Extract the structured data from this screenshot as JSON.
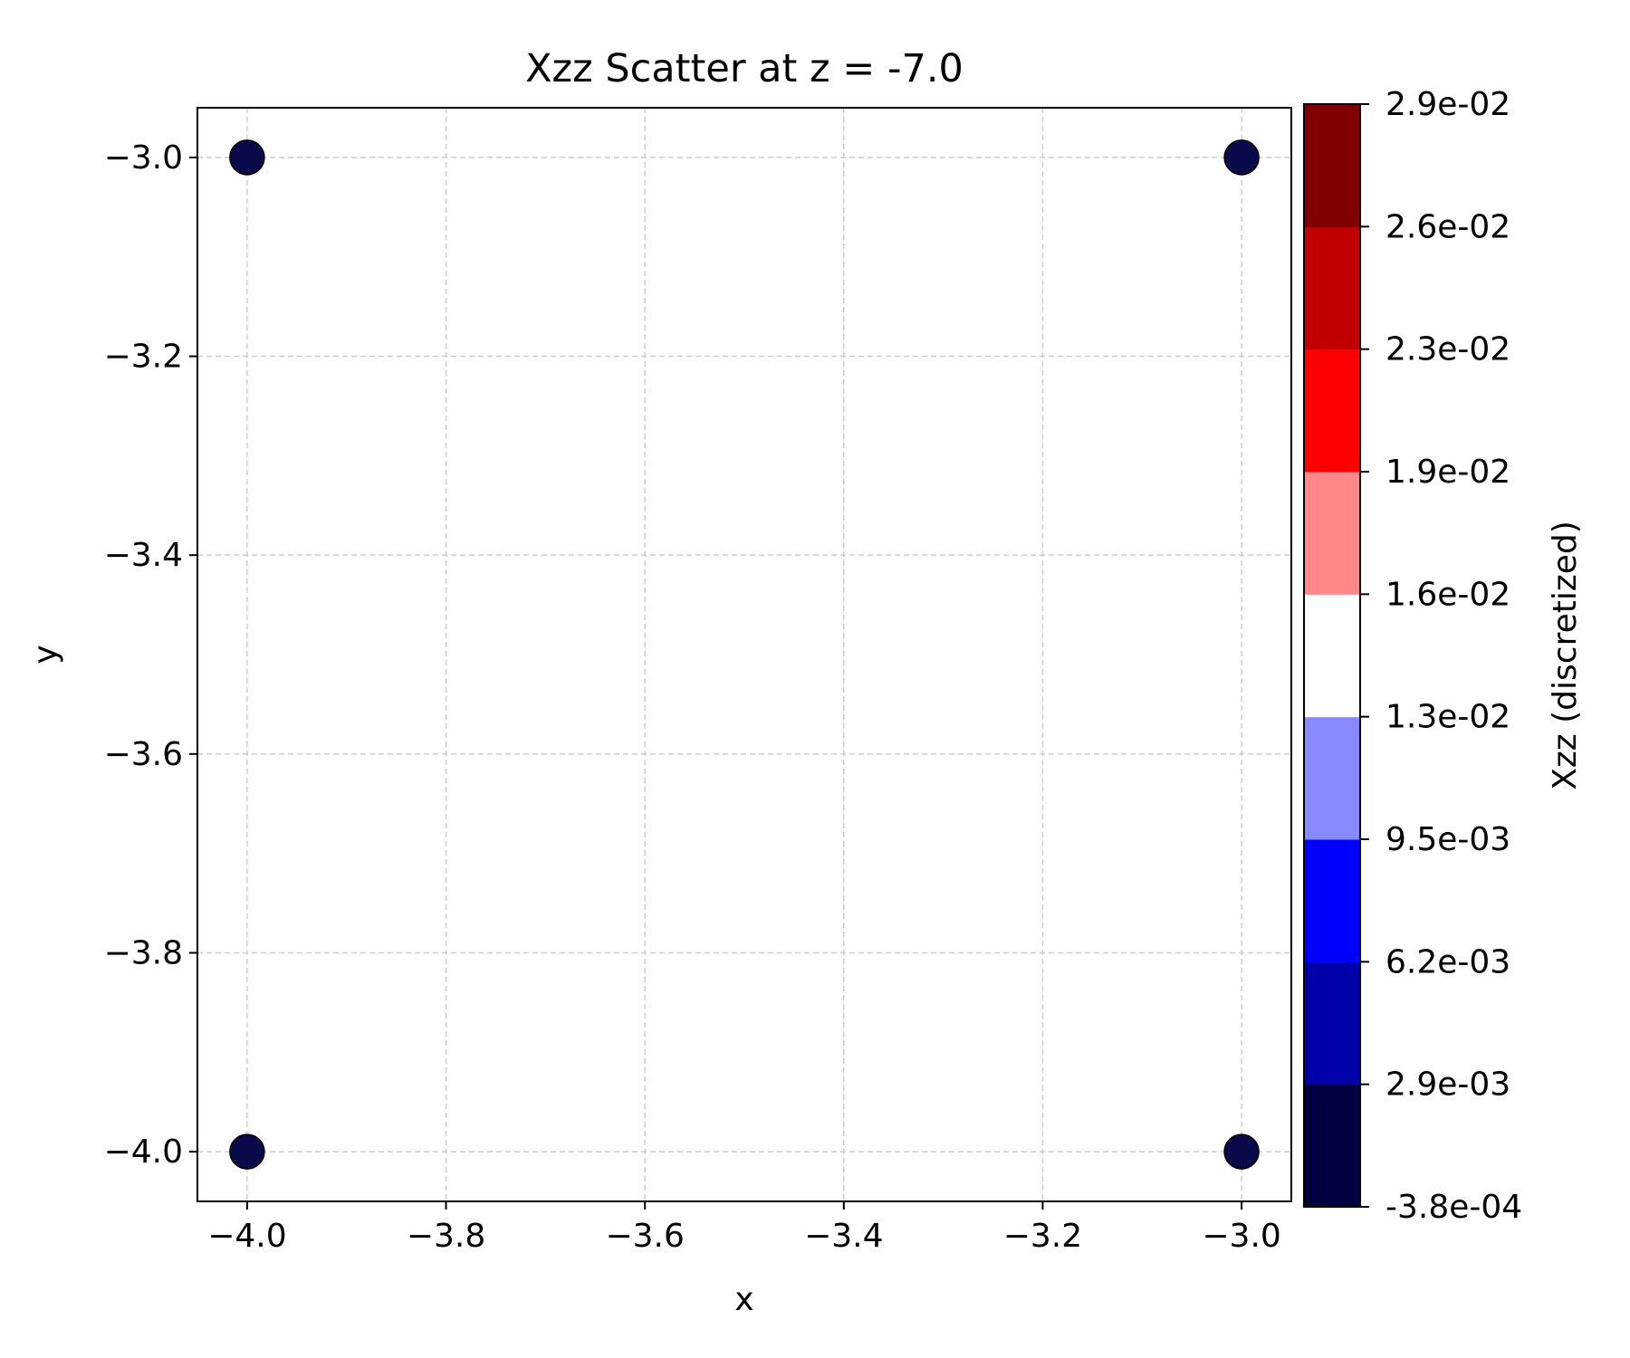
{
  "chart_data": {
    "type": "scatter",
    "title": "Xzz Scatter at z = -7.0",
    "xlabel": "x",
    "ylabel": "y",
    "xlim": [
      -4.05,
      -2.95
    ],
    "ylim": [
      -4.05,
      -2.95
    ],
    "xticks": [
      -4.0,
      -3.8,
      -3.6,
      -3.4,
      -3.2,
      -3.0
    ],
    "yticks": [
      -4.0,
      -3.8,
      -3.6,
      -3.4,
      -3.2,
      -3.0
    ],
    "xtick_labels": [
      "−4.0",
      "−3.8",
      "−3.6",
      "−3.4",
      "−3.2",
      "−3.0"
    ],
    "ytick_labels": [
      "−4.0",
      "−3.8",
      "−3.6",
      "−3.4",
      "−3.2",
      "−3.0"
    ],
    "grid": true,
    "points": [
      {
        "x": -4.0,
        "y": -3.0,
        "value": 0.0
      },
      {
        "x": -3.0,
        "y": -3.0,
        "value": 0.0
      },
      {
        "x": -4.0,
        "y": -4.0,
        "value": 0.0
      },
      {
        "x": -3.0,
        "y": -4.0,
        "value": 0.0
      }
    ],
    "marker_color": "#0a0a4a",
    "colorbar": {
      "label": "Xzz (discretized)",
      "boundaries": [
        -0.00038,
        0.0029,
        0.0062,
        0.0095,
        0.013,
        0.016,
        0.019,
        0.023,
        0.026,
        0.029
      ],
      "tick_labels": [
        "-3.8e-04",
        "2.9e-03",
        "6.2e-03",
        "9.5e-03",
        "1.3e-02",
        "1.6e-02",
        "1.9e-02",
        "2.3e-02",
        "2.6e-02",
        "2.9e-02"
      ],
      "colors": [
        "#000040",
        "#0000aa",
        "#0000ff",
        "#8888ff",
        "#ffffff",
        "#ff8888",
        "#ff0000",
        "#c00000",
        "#800000"
      ]
    }
  }
}
